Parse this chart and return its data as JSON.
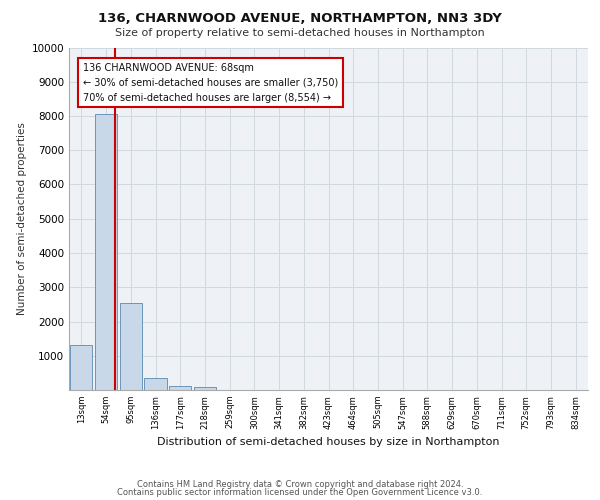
{
  "title1": "136, CHARNWOOD AVENUE, NORTHAMPTON, NN3 3DY",
  "title2": "Size of property relative to semi-detached houses in Northampton",
  "xlabel": "Distribution of semi-detached houses by size in Northampton",
  "ylabel": "Number of semi-detached properties",
  "footer1": "Contains HM Land Registry data © Crown copyright and database right 2024.",
  "footer2": "Contains public sector information licensed under the Open Government Licence v3.0.",
  "annotation_line1": "136 CHARNWOOD AVENUE: 68sqm",
  "annotation_line2": "← 30% of semi-detached houses are smaller (3,750)",
  "annotation_line3": "70% of semi-detached houses are larger (8,554) →",
  "property_size_sqm": 68,
  "bar_color": "#c8d8e8",
  "bar_edge_color": "#5a8ab0",
  "marker_line_color": "#cc0000",
  "annotation_box_color": "#cc0000",
  "bg_color": "#eef2f6",
  "grid_color": "#d0d8e0",
  "categories": [
    "13sqm",
    "54sqm",
    "95sqm",
    "136sqm",
    "177sqm",
    "218sqm",
    "259sqm",
    "300sqm",
    "341sqm",
    "382sqm",
    "423sqm",
    "464sqm",
    "505sqm",
    "547sqm",
    "588sqm",
    "629sqm",
    "670sqm",
    "711sqm",
    "752sqm",
    "793sqm",
    "834sqm"
  ],
  "values": [
    1300,
    8050,
    2550,
    350,
    130,
    80,
    0,
    0,
    0,
    0,
    0,
    0,
    0,
    0,
    0,
    0,
    0,
    0,
    0,
    0,
    0
  ],
  "ylim": [
    0,
    10000
  ],
  "yticks": [
    0,
    1000,
    2000,
    3000,
    4000,
    5000,
    6000,
    7000,
    8000,
    9000,
    10000
  ]
}
